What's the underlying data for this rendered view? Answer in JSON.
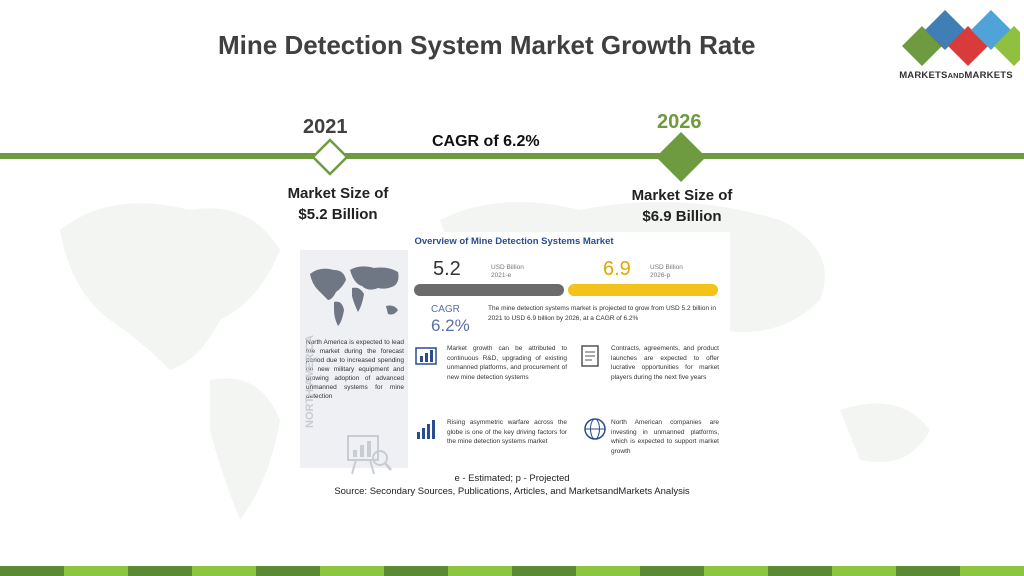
{
  "slide": {
    "title": "Mine Detection System Market Growth Rate",
    "logo_text_main": "MARKETS",
    "logo_text_and": "AND",
    "logo_text_end": "MARKETS"
  },
  "timeline": {
    "start_year": "2021",
    "end_year": "2026",
    "cagr_label": "CAGR of 6.2%",
    "start_size_line1": "Market Size of",
    "start_size_line2": "$5.2 Billion",
    "end_size_line1": "Market Size of",
    "end_size_line2": "$6.9 Billion"
  },
  "infographic": {
    "title": "Overview of Mine Detection Systems Market",
    "value_2021": "5.2",
    "unit_2021_line1": "USD Billion",
    "unit_2021_line2": "2021-e",
    "value_2026": "6.9",
    "unit_2026_line1": "USD Billion",
    "unit_2026_line2": "2026-p",
    "cagr_label": "CAGR",
    "cagr_value": "6.2%",
    "summary": "The mine detection systems market is projected to grow from USD 5.2 billion in 2021 to USD 6.9 billion by 2026, at a CAGR of 6.2%",
    "north_america_text": "North America is expected to lead the market during the forecast period due to increased spending on new military equipment and growing adoption of advanced unmanned systems for mine detection",
    "north_america_vertical": "NORTH AMERICA",
    "point1": "Market growth can be attributed to continuous R&D, upgrading of existing unmanned platforms, and procurement of new mine detection systems",
    "point2": "Contracts, agreements, and product launches are expected to offer lucrative opportunities for market players during the next five years",
    "point3": "Rising asymmetric warfare across the globe is one of the key driving factors for the mine detection systems market",
    "point4": "North American companies are investing in unmanned platforms, which is expected to support market growth"
  },
  "notes": {
    "estimate": "e - Estimated; p - Projected",
    "source": "Source: Secondary Sources, Publications, Articles, and MarketsandMarkets Analysis"
  },
  "colors": {
    "accent_green": "#6e9b3f",
    "title_gray": "#404040",
    "bar_2021": "#6b6b6b",
    "bar_2026": "#f2c318",
    "info_blue": "#2a4d8f"
  }
}
